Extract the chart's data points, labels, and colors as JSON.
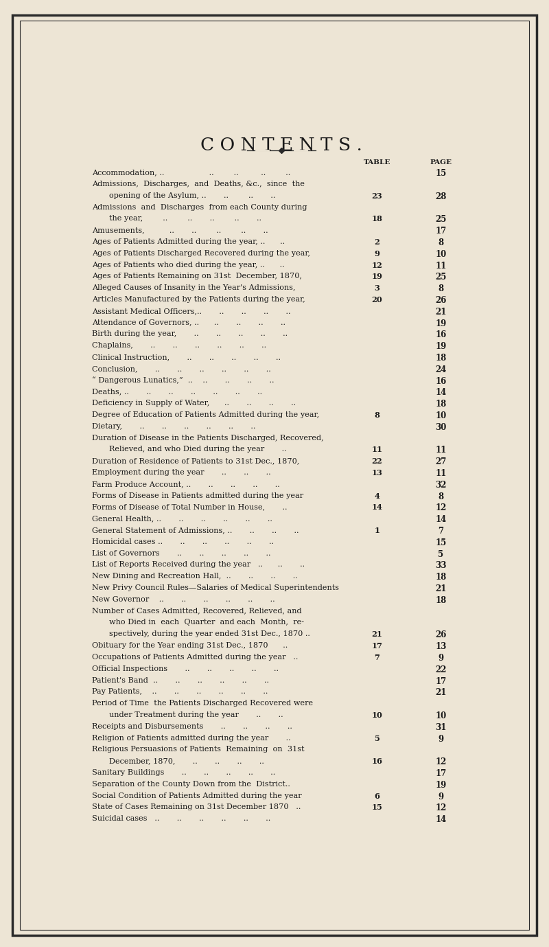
{
  "title": "C O N T E N T S .",
  "bg_color": "#ede5d5",
  "page_bg": "#ede5d5",
  "title_color": "#1a1a1a",
  "text_color": "#1a1a1a",
  "entries": [
    {
      "text": "Accommodation, ..                  ..        ..         ..        ..",
      "table": "",
      "page": "15",
      "indent": 0
    },
    {
      "text": "Admissions,  Discharges,  and  Deaths, &c.,  since  the",
      "table": "",
      "page": "",
      "indent": 0
    },
    {
      "text": "opening of the Asylum, ..       ..        ..       ..",
      "table": "23",
      "page": "28",
      "indent": 1
    },
    {
      "text": "Admissions  and  Discharges  from each County during",
      "table": "",
      "page": "",
      "indent": 0
    },
    {
      "text": "the year,        ..        ..       ..        ..       ..",
      "table": "18",
      "page": "25",
      "indent": 1
    },
    {
      "text": "Amusements,          ..       ..        ..        ..       ..",
      "table": "",
      "page": "17",
      "indent": 0
    },
    {
      "text": "Ages of Patients Admitted during the year, ..      ..",
      "table": "2",
      "page": "8",
      "indent": 0
    },
    {
      "text": "Ages of Patients Discharged Recovered during the year,",
      "table": "9",
      "page": "10",
      "indent": 0
    },
    {
      "text": "Ages of Patients who died during the year, ..      ..",
      "table": "12",
      "page": "11",
      "indent": 0
    },
    {
      "text": "Ages of Patients Remaining on 31st  December, 1870,",
      "table": "19",
      "page": "25",
      "indent": 0
    },
    {
      "text": "Alleged Causes of Insanity in the Year's Admissions,",
      "table": "3",
      "page": "8",
      "indent": 0
    },
    {
      "text": "Articles Manufactured by the Patients during the year,",
      "table": "20",
      "page": "26",
      "indent": 0
    },
    {
      "text": "Assistant Medical Officers,..       ..       ..       ..       ..",
      "table": "",
      "page": "21",
      "indent": 0
    },
    {
      "text": "Attendance of Governors, ..      ..       ..       ..       ..",
      "table": "",
      "page": "19",
      "indent": 0
    },
    {
      "text": "Birth during the year,       ..       ..       ..       ..       ..",
      "table": "",
      "page": "16",
      "indent": 0
    },
    {
      "text": "Chaplains,       ..       ..       ..       ..       ..       ..",
      "table": "",
      "page": "19",
      "indent": 0
    },
    {
      "text": "Clinical Instruction,       ..       ..       ..       ..       ..",
      "table": "",
      "page": "18",
      "indent": 0
    },
    {
      "text": "Conclusion,       ..       ..       ..       ..       ..       ..",
      "table": "",
      "page": "24",
      "indent": 0
    },
    {
      "text": "“ Dangerous Lunatics,”  ..    ..       ..       ..       ..",
      "table": "",
      "page": "16",
      "indent": 0
    },
    {
      "text": "Deaths, ..       ..       ..       ..       ..       ..       ..",
      "table": "",
      "page": "14",
      "indent": 0
    },
    {
      "text": "Deficiency in Supply of Water,      ..       ..       ..       ..",
      "table": "",
      "page": "18",
      "indent": 0
    },
    {
      "text": "Degree of Education of Patients Admitted during the year,",
      "table": "8",
      "page": "10",
      "indent": 0
    },
    {
      "text": "Dietary,       ..       ..       ..       ..       ..       ..",
      "table": "",
      "page": "30",
      "indent": 0
    },
    {
      "text": "Duration of Disease in the Patients Discharged, Recovered,",
      "table": "",
      "page": "",
      "indent": 0
    },
    {
      "text": "Relieved, and who Died during the year       ..",
      "table": "11",
      "page": "11",
      "indent": 1
    },
    {
      "text": "Duration of Residence of Patients to 31st Dec., 1870,",
      "table": "22",
      "page": "27",
      "indent": 0
    },
    {
      "text": "Employment during the year       ..       ..       ..",
      "table": "13",
      "page": "11",
      "indent": 0
    },
    {
      "text": "Farm Produce Account, ..       ..       ..       ..       ..",
      "table": "",
      "page": "32",
      "indent": 0
    },
    {
      "text": "Forms of Disease in Patients admitted during the year",
      "table": "4",
      "page": "8",
      "indent": 0
    },
    {
      "text": "Forms of Disease of Total Number in House,       ..",
      "table": "14",
      "page": "12",
      "indent": 0
    },
    {
      "text": "General Health, ..       ..       ..       ..       ..       ..",
      "table": "",
      "page": "14",
      "indent": 0
    },
    {
      "text": "General Statement of Admissions, ..       ..       ..       ..",
      "table": "1",
      "page": "7",
      "indent": 0
    },
    {
      "text": "Homicidal cases ..       ..       ..       ..       ..       ..",
      "table": "",
      "page": "15",
      "indent": 0
    },
    {
      "text": "List of Governors       ..       ..       ..       ..       ..",
      "table": "",
      "page": "5",
      "indent": 0
    },
    {
      "text": "List of Reports Received during the year   ..      ..       ..",
      "table": "",
      "page": "33",
      "indent": 0
    },
    {
      "text": "New Dining and Recreation Hall,  ..       ..       ..       ..",
      "table": "",
      "page": "18",
      "indent": 0
    },
    {
      "text": "New Privy Council Rules—Salaries of Medical Superintendents",
      "table": "",
      "page": "21",
      "indent": 0
    },
    {
      "text": "New Governor    ..       ..       ..       ..       ..       ..",
      "table": "",
      "page": "18",
      "indent": 0
    },
    {
      "text": "Number of Cases Admitted, Recovered, Relieved, and",
      "table": "",
      "page": "",
      "indent": 0
    },
    {
      "text": "who Died in  each  Quarter  and each  Month,  re-",
      "table": "",
      "page": "",
      "indent": 1
    },
    {
      "text": "spectively, during the year ended 31st Dec., 1870 ..",
      "table": "21",
      "page": "26",
      "indent": 1
    },
    {
      "text": "Obituary for the Year ending 31st Dec., 1870      ..",
      "table": "17",
      "page": "13",
      "indent": 0
    },
    {
      "text": "Occupations of Patients Admitted during the year   ..",
      "table": "7",
      "page": "9",
      "indent": 0
    },
    {
      "text": "Official Inspections       ..       ..       ..       ..       ..",
      "table": "",
      "page": "22",
      "indent": 0
    },
    {
      "text": "Patient's Band  ..       ..       ..       ..       ..       ..",
      "table": "",
      "page": "17",
      "indent": 0
    },
    {
      "text": "Pay Patients,    ..       ..       ..       ..       ..       ..",
      "table": "",
      "page": "21",
      "indent": 0
    },
    {
      "text": "Period of Time  the Patients Discharged Recovered were",
      "table": "",
      "page": "",
      "indent": 0
    },
    {
      "text": "under Treatment during the year       ..       ..",
      "table": "10",
      "page": "10",
      "indent": 1
    },
    {
      "text": "Receipts and Disbursements       ..       ..       ..       ..",
      "table": "",
      "page": "31",
      "indent": 0
    },
    {
      "text": "Religion of Patients admitted during the year       ..",
      "table": "5",
      "page": "9",
      "indent": 0
    },
    {
      "text": "Religious Persuasions of Patients  Remaining  on  31st",
      "table": "",
      "page": "",
      "indent": 0
    },
    {
      "text": "December, 1870,       ..       ..       ..       ..",
      "table": "16",
      "page": "12",
      "indent": 1
    },
    {
      "text": "Sanitary Buildings       ..       ..       ..       ..       ..",
      "table": "",
      "page": "17",
      "indent": 0
    },
    {
      "text": "Separation of the County Down from the  District..",
      "table": "",
      "page": "19",
      "indent": 0
    },
    {
      "text": "Social Condition of Patients Admitted during the year",
      "table": "6",
      "page": "9",
      "indent": 0
    },
    {
      "text": "State of Cases Remaining on 31st December 1870   ..",
      "table": "15",
      "page": "12",
      "indent": 0
    },
    {
      "text": "Suicidal cases   ..       ..       ..       ..       ..       ..",
      "table": "",
      "page": "14",
      "indent": 0
    }
  ]
}
